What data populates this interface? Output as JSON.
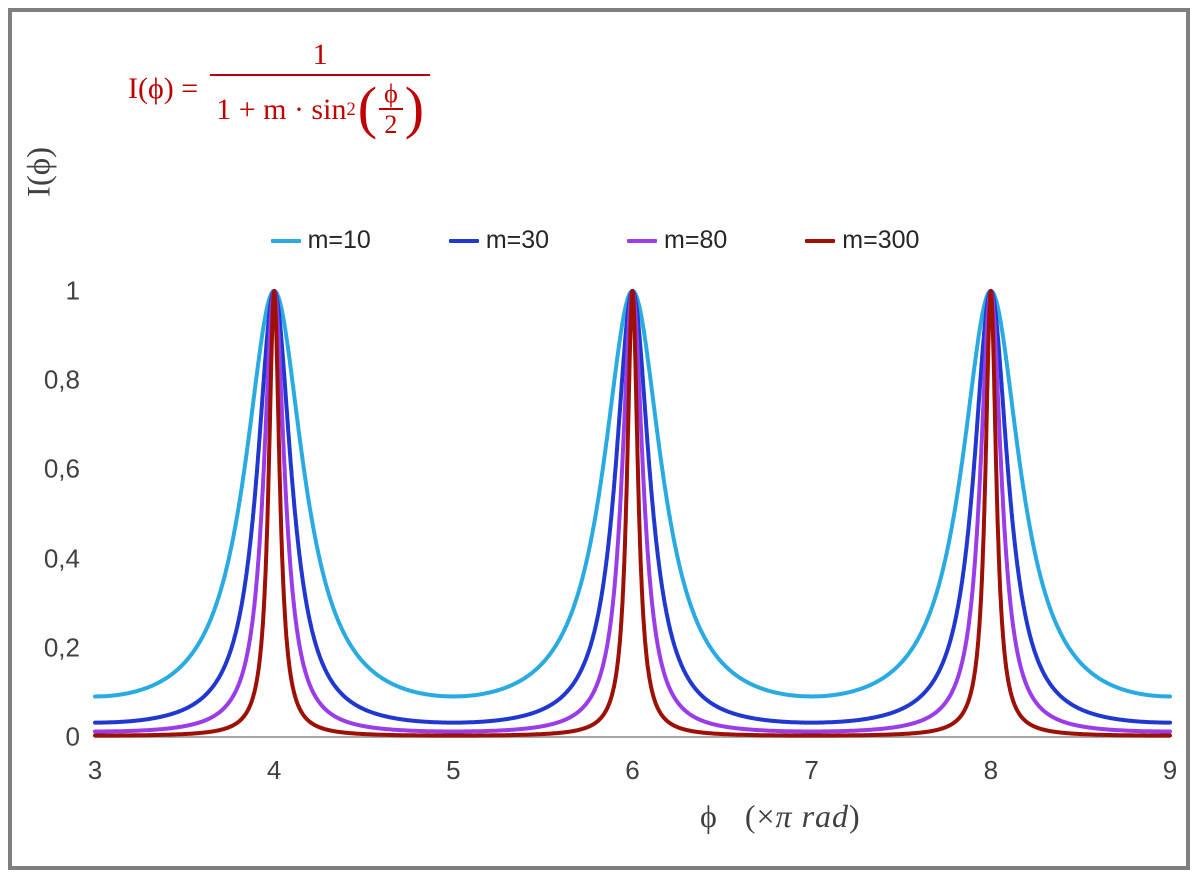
{
  "formula": {
    "lhs": "I(ϕ) =",
    "numerator": "1",
    "den_prefix": "1 + m · sin",
    "den_power": "2",
    "open_paren": "(",
    "inner_num": "ϕ",
    "inner_den": "2",
    "color": "#c00000",
    "close_paren": ")"
  },
  "y_axis_title": "I(ϕ)",
  "x_axis_title": {
    "phi": "ϕ",
    "prefix": "(×",
    "italic": "π rad",
    "suffix": ")"
  },
  "chart_data": {
    "type": "line",
    "title": "",
    "xlabel": "ϕ (× π rad)",
    "ylabel": "I(ϕ)",
    "formula": "I(phi) = 1 / (1 + m·sin²(phi/2)), x axis in units of π rad",
    "x_range": [
      3,
      9
    ],
    "y_range": [
      0,
      1
    ],
    "x_ticks": [
      3,
      4,
      5,
      6,
      7,
      8,
      9
    ],
    "y_ticks": [
      {
        "v": 0,
        "label": "0"
      },
      {
        "v": 0.2,
        "label": "0,2"
      },
      {
        "v": 0.4,
        "label": "0,4"
      },
      {
        "v": 0.6,
        "label": "0,6"
      },
      {
        "v": 0.8,
        "label": "0,8"
      },
      {
        "v": 1,
        "label": "1"
      }
    ],
    "peaks_at_x": [
      4,
      6,
      8
    ],
    "peak_value": 1,
    "series": [
      {
        "name": "m=10",
        "m": 10,
        "color": "#29abe2",
        "min_value": 0.0909
      },
      {
        "name": "m=30",
        "m": 30,
        "color": "#2038d0",
        "min_value": 0.0323
      },
      {
        "name": "m=80",
        "m": 80,
        "color": "#9a3de8",
        "min_value": 0.0123
      },
      {
        "name": "m=300",
        "m": 300,
        "color": "#9c1006",
        "min_value": 0.0033
      }
    ],
    "legend_position": "top",
    "grid": false,
    "axis_color": "#a6a6a6"
  },
  "colors": {
    "frame_border": "#7f7f7f",
    "tick_text": "#404040",
    "legend_text": "#262626"
  }
}
